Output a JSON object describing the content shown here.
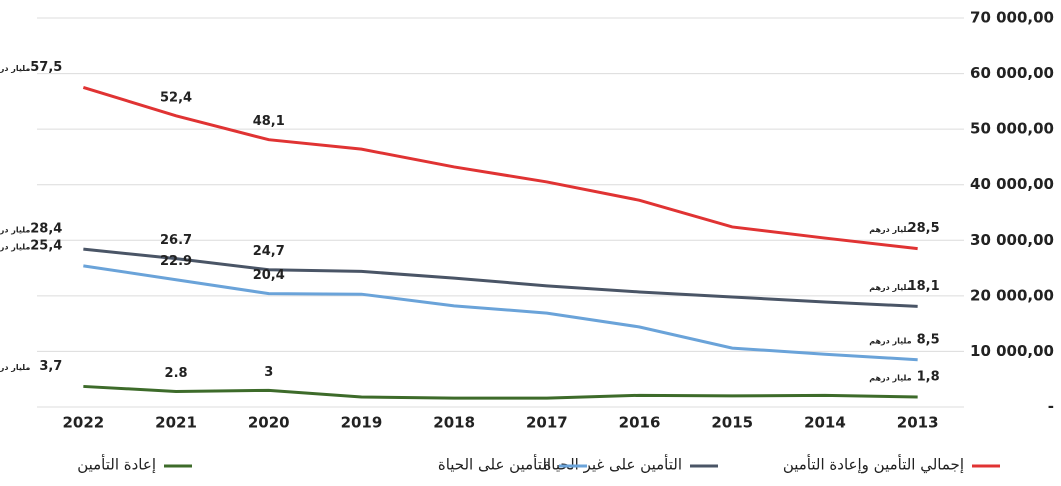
{
  "chart_data": {
    "type": "line",
    "categories": [
      "2022",
      "2021",
      "2020",
      "2019",
      "2018",
      "2017",
      "2016",
      "2015",
      "2014",
      "2013"
    ],
    "unit": "مليار درهم",
    "series": [
      {
        "name": "إجمالي التأمين وإعادة التأمين",
        "color": "#e03333",
        "values": [
          57500,
          52400,
          48100,
          46400,
          43200,
          40500,
          37200,
          32400,
          30400,
          28500
        ],
        "value_labels": [
          "57,5",
          "52,4",
          "48,1",
          null,
          null,
          null,
          null,
          null,
          null,
          "28,5"
        ]
      },
      {
        "name": "التأمين على غير الحياة",
        "color": "#4a5566",
        "values": [
          28400,
          26700,
          24700,
          24400,
          23200,
          21800,
          20700,
          19800,
          18900,
          18100
        ],
        "value_labels": [
          "28,4",
          "26.7",
          "24,7",
          null,
          null,
          null,
          null,
          null,
          null,
          "18,1"
        ]
      },
      {
        "name": "التأمين على الحياة",
        "color": "#6aa3d9",
        "values": [
          25400,
          22900,
          20400,
          20300,
          18200,
          16900,
          14400,
          10600,
          9500,
          8500
        ],
        "value_labels": [
          "25,4",
          "22.9",
          "20,4",
          null,
          null,
          null,
          null,
          null,
          null,
          "8,5"
        ]
      },
      {
        "name": "إعادة التأمين",
        "color": "#3d6b2a",
        "values": [
          3700,
          2800,
          3000,
          1800,
          1600,
          1600,
          2100,
          2000,
          2100,
          1800
        ],
        "value_labels": [
          "3,7",
          "2.8",
          "3",
          null,
          null,
          null,
          null,
          null,
          null,
          "1,8"
        ]
      }
    ],
    "ylim": [
      0,
      70000
    ],
    "yticks": [
      {
        "value": 0,
        "label": "-"
      },
      {
        "value": 10000,
        "label": "10 000,00"
      },
      {
        "value": 20000,
        "label": "20 000,00"
      },
      {
        "value": 30000,
        "label": "30 000,00"
      },
      {
        "value": 40000,
        "label": "40 000,00"
      },
      {
        "value": 50000,
        "label": "50 000,00"
      },
      {
        "value": 60000,
        "label": "60 000,00"
      },
      {
        "value": 70000,
        "label": "70 000,00"
      }
    ],
    "grid": true
  }
}
